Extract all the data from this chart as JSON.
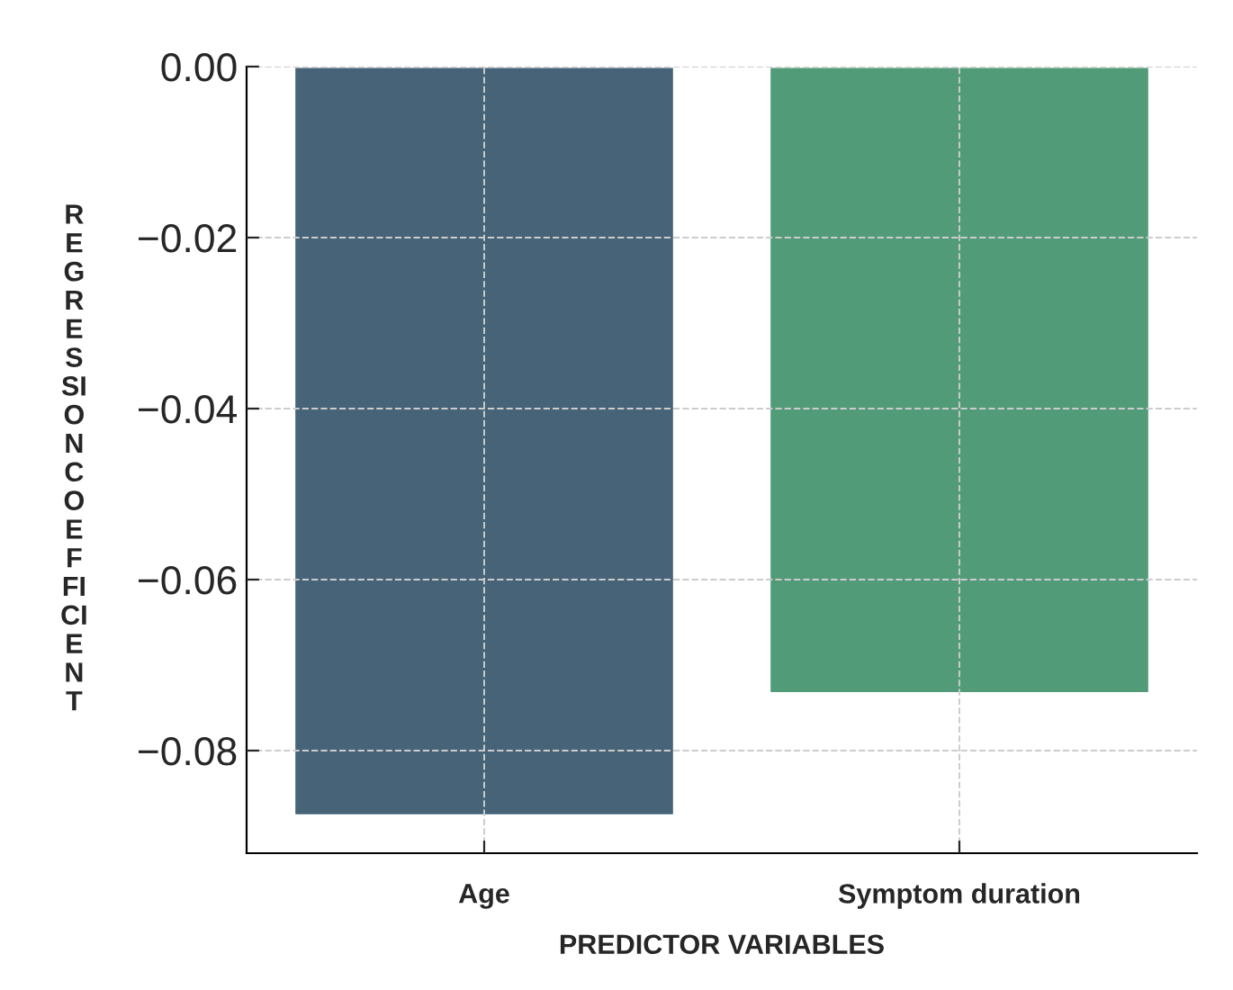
{
  "chart_data": {
    "type": "bar",
    "xlabel": "PREDICTOR VARIABLES",
    "ylabel": "R\nE\nG\nR\nE\nS\nSI\nO\nN\nC\nO\nE\nF\nFI\nCI\nE\nN\nT",
    "categories": [
      "Age",
      "Symptom duration"
    ],
    "values": [
      -0.0876,
      -0.0733
    ],
    "colors": [
      "#3e6480",
      "#46a778"
    ],
    "ylim": [
      -0.092,
      0
    ],
    "yticks": [
      {
        "value": 0,
        "label": "0.00"
      },
      {
        "value": -0.02,
        "label": "−0.02"
      },
      {
        "value": -0.04,
        "label": "−0.04"
      },
      {
        "value": -0.06,
        "label": "−0.06"
      },
      {
        "value": -0.08,
        "label": "−0.08"
      }
    ],
    "grid": true
  }
}
